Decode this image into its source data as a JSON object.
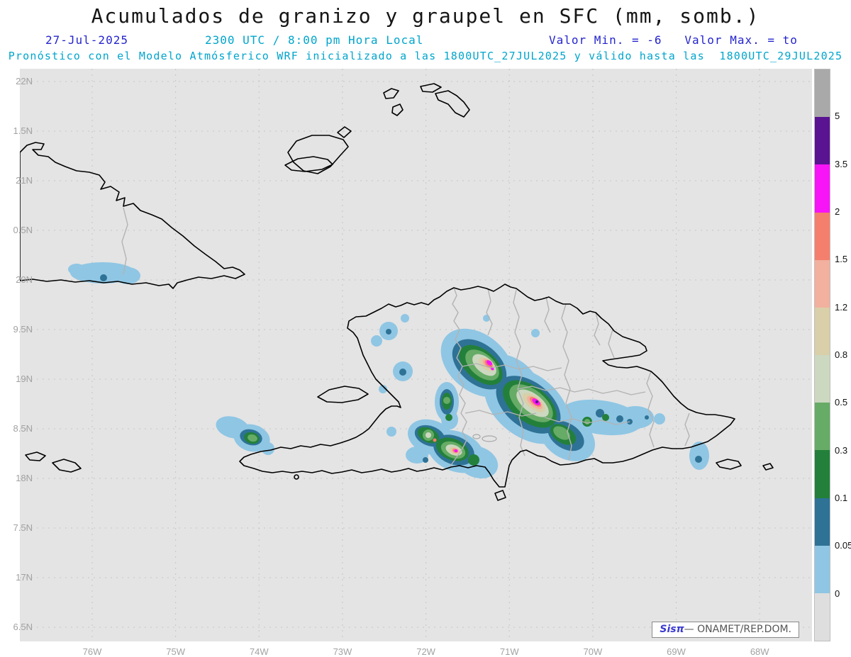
{
  "title": "Acumulados de granizo y graupel en SFC (mm, somb.)",
  "header": {
    "date": "27-Jul-2025",
    "time": "2300 UTC / 8:00 pm Hora Local",
    "minmax": "Valor Min. = -6   Valor Max. = to",
    "model": "Pronóstico con el Modelo Atmósferico WRF inicializado a las 1800UTC_27JUL2025 y válido hasta las  1800UTC_29JUL2025"
  },
  "axes": {
    "lat_labels": [
      "22N",
      "1.5N",
      "21N",
      "0.5N",
      "20N",
      "9.5N",
      "19N",
      "8.5N",
      "18N",
      "7.5N",
      "17N",
      "6.5N"
    ],
    "lon_labels": [
      "76W",
      "75W",
      "74W",
      "73W",
      "72W",
      "71W",
      "70W",
      "69W",
      "68W"
    ]
  },
  "colorbar": {
    "segment_colors": [
      "#a9a9a9",
      "#5a1391",
      "#f714f7",
      "#f57f6d",
      "#f2b09e",
      "#d9cfa8",
      "#ccd8c0",
      "#66ab66",
      "#23803a",
      "#2e7296",
      "#8fc6e4",
      "#dedede"
    ],
    "tick_labels": [
      "5",
      "3.5",
      "2",
      "1.5",
      "1.2",
      "0.8",
      "0.5",
      "0.3",
      "0.1",
      "0.05",
      "0"
    ],
    "units": "mm"
  },
  "palette": {
    "map_bg": "#e4e4e4",
    "grid": "#c6c6c6",
    "axis": "#a2a2a2",
    "b005": "#8fc6e4",
    "b010": "#2e7296",
    "b030": "#23803a",
    "b050": "#66ab66",
    "b080": "#ccd8c0",
    "b120": "#d9cfa8",
    "b150": "#f2b09e",
    "b200": "#f57f6d",
    "b350": "#f714f7",
    "b500": "#5a1391"
  },
  "text_colors": {
    "blue": "#2424cf",
    "cyan": "#00a5cc"
  },
  "credit": {
    "brand": "Sisπ",
    "text": "— ONAMET/REP.DOM."
  }
}
